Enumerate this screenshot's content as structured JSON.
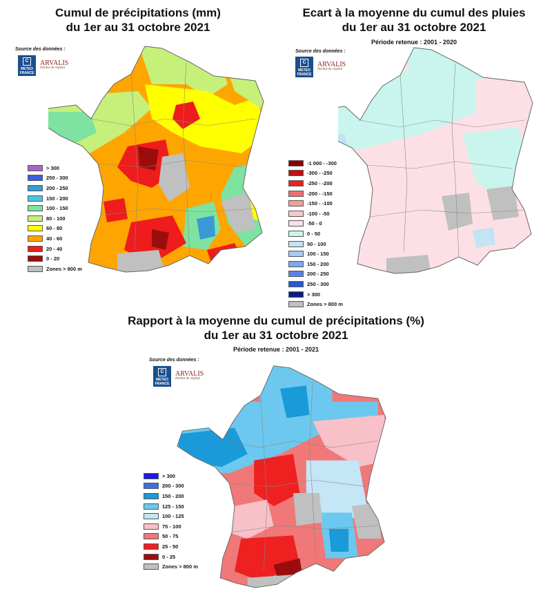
{
  "maps": [
    {
      "title_line1": "Cumul de précipitations (mm)",
      "title_line2": "du 1er au 31 octobre 2021",
      "period": "",
      "source_label": "Source des données :",
      "logos": {
        "meteo": "METEO FRANCE",
        "arvalis": "ARVALIS",
        "arvalis_tagline": "Institut du végétal"
      },
      "legend": [
        {
          "label": "> 300",
          "color": "#a865c9"
        },
        {
          "label": "250 - 300",
          "color": "#3a5fe0"
        },
        {
          "label": "200 - 250",
          "color": "#3a9ad6"
        },
        {
          "label": "150 - 200",
          "color": "#4cc4e4"
        },
        {
          "label": "100 - 150",
          "color": "#7ee3a0"
        },
        {
          "label": "80 - 100",
          "color": "#c6f07a"
        },
        {
          "label": "60 - 80",
          "color": "#ffff00"
        },
        {
          "label": "40 - 60",
          "color": "#ffa500"
        },
        {
          "label": "20 - 40",
          "color": "#ee1c1c"
        },
        {
          "label": "0 - 20",
          "color": "#9b0d0d"
        },
        {
          "label": "Zones > 800 m",
          "color": "#c0c0c0"
        }
      ]
    },
    {
      "title_line1": "Ecart à la moyenne du cumul des pluies",
      "title_line2": "du 1er au 31 octobre 2021",
      "period": "Période retenue : 2001 - 2020",
      "source_label": "Source des données :",
      "logos": {
        "meteo": "METEO FRANCE",
        "arvalis": "ARVALIS",
        "arvalis_tagline": "Institut du végétal"
      },
      "legend": [
        {
          "label": "-1 000 - -300",
          "color": "#8b0000"
        },
        {
          "label": "-300 - -250",
          "color": "#c21010"
        },
        {
          "label": "-250 - -200",
          "color": "#ee2020"
        },
        {
          "label": "-200 - -150",
          "color": "#f07070"
        },
        {
          "label": "-150 - -100",
          "color": "#f4a090"
        },
        {
          "label": "-100 - -50",
          "color": "#f8c8c8"
        },
        {
          "label": "-50 - 0",
          "color": "#fde0e6"
        },
        {
          "label": "0 - 50",
          "color": "#c9f5ee"
        },
        {
          "label": "50 - 100",
          "color": "#c2e4f4"
        },
        {
          "label": "100 - 150",
          "color": "#a8c8f0"
        },
        {
          "label": "150 - 200",
          "color": "#7fa8ec"
        },
        {
          "label": "200 - 250",
          "color": "#5a84e4"
        },
        {
          "label": "250 - 300",
          "color": "#2a58d8"
        },
        {
          "label": "> 300",
          "color": "#0b1d80"
        },
        {
          "label": "Zones > 800 m",
          "color": "#c0c0c0"
        }
      ]
    },
    {
      "title_line1": "Rapport à la moyenne du cumul de précipitations (%)",
      "title_line2": "du 1er au 31 octobre 2021",
      "period": "Période retenue : 2001 - 2021",
      "source_label": "Source des données :",
      "logos": {
        "meteo": "METEO FRANCE",
        "arvalis": "ARVALIS",
        "arvalis_tagline": "Institut du végétal"
      },
      "legend": [
        {
          "label": "> 300",
          "color": "#1a1ae8"
        },
        {
          "label": "200 - 300",
          "color": "#3a70e4"
        },
        {
          "label": "150 - 200",
          "color": "#1a9ad8"
        },
        {
          "label": "125 - 150",
          "color": "#6cc8ee"
        },
        {
          "label": "100 - 125",
          "color": "#c4e6f6"
        },
        {
          "label": "75 - 100",
          "color": "#f8c0c8"
        },
        {
          "label": "50 - 75",
          "color": "#f07878"
        },
        {
          "label": "25 - 50",
          "color": "#ee2020"
        },
        {
          "label": "0 - 25",
          "color": "#9b0d0d"
        },
        {
          "label": "Zones > 800 m",
          "color": "#c0c0c0"
        }
      ]
    }
  ]
}
